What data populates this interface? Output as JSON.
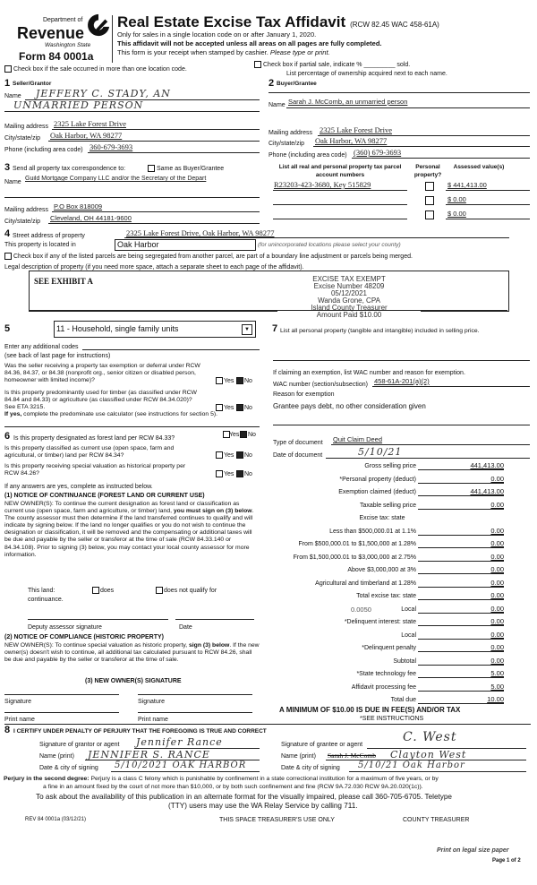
{
  "header": {
    "dept": "Department of",
    "revenue": "Revenue",
    "state": "Washington State",
    "form": "Form 84 0001a",
    "title": "Real Estate Excise Tax Affidavit",
    "rcw": "(RCW 82.45 WAC 458-61A)",
    "line1": "Only for sales in a single location code on or after January 1, 2020.",
    "line2": "This affidavit will not be accepted unless all areas on all pages are fully completed.",
    "line3a": "This form is your receipt when stamped by cashier.",
    "line3b": "Please type or print."
  },
  "checks": {
    "multi_location": "Check box if the sale occurred in more than one location code.",
    "partial": "Check box if partial sale, indicate % _________ sold.",
    "partial_note": "List percentage of ownership acquired next to each name."
  },
  "seller": {
    "num": "1",
    "heading": "Seller/Grantor",
    "name_label": "Name",
    "name1": "JEFFERY C. STADY, AN",
    "name2": "UNMARRIED PERSON",
    "mail_label": "Mailing address",
    "mail": "2325 Lake Forest Drive",
    "city_label": "City/state/zip",
    "city": "Oak Harbor, WA 98277",
    "phone_label": "Phone (including area code)",
    "phone": "360-679-3693"
  },
  "buyer": {
    "num": "2",
    "heading": "Buyer/Grantee",
    "name_label": "Name",
    "name": "Sarah J. McComb, an unmarried person",
    "mail_label": "Mailing address",
    "mail": "2325 Lake Forest Drive",
    "city_label": "City/state/zip",
    "city": "Oak Harbor, WA 98277",
    "phone_label": "Phone (including area code)",
    "phone": "(360) 679-3693"
  },
  "corr": {
    "num": "3",
    "heading": "Send all property tax correspondence to:",
    "same": "Same as Buyer/Grantee",
    "name_label": "Name",
    "name": "Guild Mortgage Company LLC and/or the Secretary of the Depart",
    "mail_label": "Mailing address",
    "mail": "P.O Box 818009",
    "city_label": "City/state/zip",
    "city": "Cleveland, OH 44181-9600"
  },
  "parcels": {
    "col1": "List all real and personal property tax parcel account numbers",
    "col2": "Personal property?",
    "col3": "Assessed value(s)",
    "rows": [
      {
        "number": "R23203-423-3680, Key 515829",
        "value": "$ 441,413.00"
      },
      {
        "number": "",
        "value": "$ 0.00"
      },
      {
        "number": "",
        "value": "$ 0.00"
      }
    ]
  },
  "property": {
    "num": "4",
    "street_label": "Street address of property",
    "street": "2325 Lake Forest Drive, Oak Harbor, WA 98277",
    "located_label": "This property is located in",
    "located": "Oak Harbor",
    "located_note": "(for unincorporated locations please select your county)",
    "segregated": "Check box if any of the listed parcels are being segregated from another parcel, are part of a boundary line adjustment or parcels being merged.",
    "legal_label": "Legal description of property (if you need more space, attach a separate sheet to each page of the affidavit).",
    "legal": "SEE EXHIBIT A"
  },
  "stamp": {
    "l1": "EXCISE TAX EXEMPT",
    "l2": "Excise Number 48209",
    "l3": "05/12/2021",
    "l4": "Wanda Grone, CPA",
    "l5": "Island County Treasurer",
    "l6": "Amount Paid $10.00"
  },
  "s5": {
    "num": "5",
    "select": "11 - Household, single family units",
    "codes": "Enter any additional codes",
    "see_back": "(see back of last page for instructions)",
    "q1": "Was the seller receiving a property tax exemption or deferral under RCW 84.36, 84.37, or 84.38 (nonprofit org., senior citizen or disabled person, homeowner with limited income)?",
    "q2": "Is this property predominantly used for timber (as classified under RCW 84.84 and 84.33) or agriculture (as classified under RCW 84.34.020)? See ETA 3215.",
    "q2b": "If yes,",
    "q2c": "complete the predominate use calculator (see instructions for section 5).",
    "yes": "Yes",
    "no": "No"
  },
  "s6": {
    "num": "6",
    "q1": "Is this property designated as forest land per RCW 84.33?",
    "q2": "Is this property classified as current use (open space, farm and agricultural, or timber) land per RCW 84.34?",
    "q3": "Is this property receiving special valuation as historical property per RCW 84.26?",
    "if_yes": "If any answers are yes, complete as instructed below.",
    "n1_title": "(1) NOTICE OF CONTINUANCE (FOREST LAND OR CURRENT USE)",
    "n1_a": "NEW OWNER(S): To continue the current designation as forest land or classification as current use (open space, farm and agriculture, or timber) land,",
    "n1_b": "you must sign on (3) below",
    "n1_c": ". The county assessor must then determine if the land transferred continues to qualify and will indicate by signing below. If the land no longer qualifies or you do not wish to continue the designation or classification, it will be removed and the compensating or additional taxes will be due and payable by the seller or transferor at the time of sale (RCW 84.33.140 or 84.34.108). Prior to signing (3) below, you may contact your local county assessor for more information.",
    "this_land": "This land:",
    "does": "does",
    "does_not": "does not qualify for",
    "continuance": "continuance.",
    "deputy": "Deputy assessor signature",
    "date": "Date",
    "n2_title": "(2) NOTICE OF COMPLIANCE (HISTORIC PROPERTY)",
    "n2_a": "NEW OWNER(S): To continue special valuation as historic property,",
    "n2_b": "sign (3) below",
    "n2_c": ". If the new owner(s) doesn't wish to continue, all additional tax calculated pursuant to RCW 84.26, shall be due and payable by the seller or transferor at the time of sale.",
    "n3_title": "(3) NEW OWNER(S) SIGNATURE",
    "signature": "Signature",
    "print_name": "Print name"
  },
  "s7": {
    "num": "7",
    "text": "List all personal property (tangible and intangible) included in selling price.",
    "exempt_q": "If claiming an exemption, list WAC number and reason for exemption.",
    "wac_label": "WAC number (section/subsection)",
    "wac": "458-61A-201(a)(2)",
    "reason_label": "Reason for exemption",
    "reason": "Grantee pays debt, no other consideration given",
    "doc_type_label": "Type of document",
    "doc_type": "Quit Claim Deed",
    "doc_date_label": "Date of document",
    "doc_date": "5/10/21"
  },
  "tax": {
    "rows": [
      {
        "label": "Gross selling price",
        "value": "441,413.00"
      },
      {
        "label": "*Personal property (deduct)",
        "value": "0.00"
      },
      {
        "label": "Exemption claimed (deduct)",
        "value": "441,413.00"
      },
      {
        "label": "Taxable selling price",
        "value": "0.00"
      },
      {
        "label": "Excise tax: state",
        "value": "",
        "header": true
      },
      {
        "label": "Less than $500,000.01 at 1.1%",
        "value": "0.00"
      },
      {
        "label": "From $500,000.01 to $1,500,000 at 1.28%",
        "value": "0.00"
      },
      {
        "label": "From $1,500,000.01 to $3,000,000 at 2.75%",
        "value": "0.00"
      },
      {
        "label": "Above $3,000,000 at 3%",
        "value": "0.00"
      },
      {
        "label": "Agricultural and timberland at 1.28%",
        "value": "0.00"
      },
      {
        "label": "Total excise tax: state",
        "value": "0.00"
      },
      {
        "label": "Local",
        "value": "0.00",
        "rate": "0.0050"
      },
      {
        "label": "*Delinquent interest: state",
        "value": "0.00"
      },
      {
        "label": "Local",
        "value": "0.00"
      },
      {
        "label": "*Delinquent penalty",
        "value": "0.00"
      },
      {
        "label": "Subtotal",
        "value": "0.00"
      },
      {
        "label": "*State technology fee",
        "value": "5.00"
      },
      {
        "label": "Affidavit processing fee",
        "value": "5.00"
      },
      {
        "label": "Total due",
        "value": "10.00"
      }
    ],
    "minimum": "A MINIMUM OF $10.00 IS DUE IN FEE(S) AND/OR TAX",
    "see": "*SEE INSTRUCTIONS"
  },
  "s8": {
    "num": "8",
    "certify": "I CERTIFY UNDER PENALTY OF PERJURY THAT THE FOREGOING IS TRUE AND CORRECT",
    "grantor_sig_label": "Signature of grantor or agent",
    "grantor_sig": "Jennifer Rance",
    "grantor_name_label": "Name (print)",
    "grantor_name": "JENNIFER S. RANCE",
    "grantor_date_label": "Date & city of signing",
    "grantor_date": "5/10/2021 OAK HARBOR",
    "grantee_sig_label": "Signature of grantee or agent",
    "grantee_sig": "C. West",
    "grantee_name_label": "Name (print)",
    "grantee_name_struck": "Sarah J. McComb",
    "grantee_name": "Clayton West",
    "grantee_date_label": "Date & city of signing",
    "grantee_date": "5/10/21 Oak Harbor"
  },
  "footer": {
    "perjury_b": "Perjury in the second degree:",
    "perjury": "Perjury is a class C felony which is punishable by confinement in a state correctional institution for a maximum of five years, or by",
    "perjury2": "a fine in an amount fixed by the court of not more than $10,000, or by both such confinement and fine (RCW 9A.72.030 RCW 9A.20.020(1c)).",
    "ask1": "To ask about the availability of this publication in an alternate format for the visually impaired, please call 360-705-6705. Teletype",
    "ask2": "(TTY) users may use the WA Relay Service by calling 711.",
    "rev": "REV 84 0001a (03/12/21)",
    "treasurer_use": "THIS SPACE TREASURER'S USE ONLY",
    "county_treasurer": "COUNTY TREASURER",
    "legal_paper": "Print on legal size paper",
    "page": "Page 1 of 2"
  }
}
